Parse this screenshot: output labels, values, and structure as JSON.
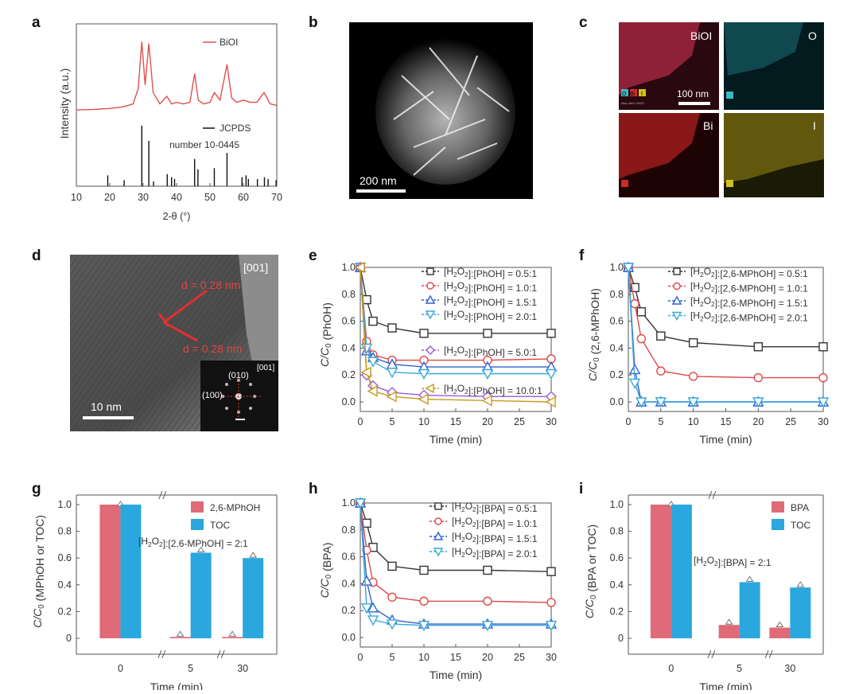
{
  "panel_letters": [
    "a",
    "b",
    "c",
    "d",
    "e",
    "f",
    "g",
    "h",
    "i"
  ],
  "images": {
    "b": {
      "scale": "200 nm"
    },
    "c": {
      "tiles": [
        "BiOI",
        "O",
        "Bi",
        "I"
      ],
      "scale": "100 nm",
      "chips": [
        "O",
        "Bi",
        "I"
      ],
      "tile_colors": [
        "#c22b3a",
        "#3ab8c6",
        "#d12a2a",
        "#cfc11f"
      ],
      "caption": "Map data 14651"
    },
    "d": {
      "zone": "[001]",
      "d1": "d = 0.28 nm",
      "d2": "d = 0.28 nm",
      "scale": "10 nm",
      "inset_zone": "[001]",
      "inset_l1": "(010)",
      "inset_l2": "(100)"
    }
  },
  "chart_data": [
    {
      "id": "a",
      "type": "line",
      "xlabel": "2-θ (°)",
      "ylabel": "Intensity (a.u.)",
      "xlim": [
        10,
        70
      ],
      "xticks": [
        10,
        20,
        30,
        40,
        50,
        60,
        70
      ],
      "series": [
        {
          "name": "BiOI",
          "color": "#e05050",
          "x": [
            10,
            15,
            20,
            24,
            27,
            28.5,
            29.6,
            30.6,
            31.7,
            33,
            35,
            37.1,
            38.5,
            40,
            42,
            44,
            45.4,
            46.5,
            48,
            50,
            51.3,
            53,
            55.1,
            56.5,
            58,
            60,
            62,
            64,
            66.2,
            68,
            70
          ],
          "y": [
            0.02,
            0.025,
            0.04,
            0.06,
            0.1,
            0.3,
            0.92,
            0.35,
            0.9,
            0.25,
            0.1,
            0.2,
            0.1,
            0.12,
            0.1,
            0.12,
            0.5,
            0.15,
            0.1,
            0.12,
            0.25,
            0.15,
            0.62,
            0.18,
            0.12,
            0.15,
            0.12,
            0.12,
            0.25,
            0.1,
            0.08
          ]
        }
      ],
      "reference": {
        "name": "JCPDS number 10-0445",
        "x": [
          19.4,
          24.3,
          29.6,
          31.7,
          33.1,
          37.2,
          38.5,
          39.4,
          45.4,
          46.4,
          51.3,
          55.1,
          59.6,
          60.8,
          61.5,
          64.2,
          66.3,
          67.4,
          69.8
        ],
        "h": [
          0.18,
          0.1,
          1.0,
          0.75,
          0.08,
          0.2,
          0.15,
          0.12,
          0.45,
          0.28,
          0.3,
          0.55,
          0.15,
          0.18,
          0.12,
          0.12,
          0.15,
          0.12,
          0.1
        ]
      }
    },
    {
      "id": "e",
      "type": "line",
      "xlabel": "Time (min)",
      "ylabel": "C/C0 (PhOH)",
      "xlim": [
        0,
        30
      ],
      "ylim": [
        0,
        1.0
      ],
      "xticks": [
        0,
        5,
        10,
        15,
        20,
        25,
        30
      ],
      "yticks": [
        0,
        0.2,
        0.4,
        0.6,
        0.8,
        1.0
      ],
      "x": [
        0,
        1,
        2,
        5,
        10,
        20,
        30
      ],
      "series": [
        {
          "name": "[H2O2]:[PhOH] = 0.5:1",
          "color": "#333333",
          "marker": "square",
          "values": [
            1.0,
            0.76,
            0.6,
            0.55,
            0.51,
            0.51,
            0.51
          ]
        },
        {
          "name": "[H2O2]:[PhOH] = 1.0:1",
          "color": "#e04848",
          "marker": "circle",
          "values": [
            1.0,
            0.45,
            0.35,
            0.31,
            0.31,
            0.31,
            0.32
          ]
        },
        {
          "name": "[H2O2]:[PhOH] = 1.5:1",
          "color": "#3060d0",
          "marker": "triangle-up",
          "values": [
            1.0,
            0.38,
            0.33,
            0.28,
            0.26,
            0.26,
            0.26
          ]
        },
        {
          "name": "[H2O2]:[PhOH] = 2.0:1",
          "color": "#3aa7d8",
          "marker": "triangle-down",
          "values": [
            1.0,
            0.4,
            0.3,
            0.22,
            0.21,
            0.21,
            0.21
          ]
        },
        {
          "name": "[H2O2]:[PhOH] = 5.0:1",
          "color": "#9a5bd6",
          "marker": "diamond",
          "values": [
            1.0,
            0.2,
            0.12,
            0.07,
            0.05,
            0.04,
            0.04
          ]
        },
        {
          "name": "[H2O2]:[PhOH] = 10.0:1",
          "color": "#c79a1a",
          "marker": "triangle-left",
          "values": [
            1.0,
            0.22,
            0.08,
            0.04,
            0.02,
            0.01,
            0.0
          ]
        }
      ]
    },
    {
      "id": "f",
      "type": "line",
      "xlabel": "Time (min)",
      "ylabel": "C/C0 (2,6-MPhOH)",
      "xlim": [
        0,
        30
      ],
      "ylim": [
        0,
        1.0
      ],
      "xticks": [
        0,
        5,
        10,
        15,
        20,
        25,
        30
      ],
      "yticks": [
        0,
        0.2,
        0.4,
        0.6,
        0.8,
        1.0
      ],
      "x": [
        0,
        1,
        2,
        5,
        10,
        20,
        30
      ],
      "series": [
        {
          "name": "[H2O2]:[2,6-MPhOH] = 0.5:1",
          "color": "#333333",
          "marker": "square",
          "values": [
            1.0,
            0.85,
            0.67,
            0.49,
            0.44,
            0.41,
            0.41
          ]
        },
        {
          "name": "[H2O2]:[2,6-MPhOH] = 1.0:1",
          "color": "#e04848",
          "marker": "circle",
          "values": [
            1.0,
            0.73,
            0.47,
            0.23,
            0.19,
            0.18,
            0.18
          ]
        },
        {
          "name": "[H2O2]:[2,6-MPhOH] = 1.5:1",
          "color": "#3060d0",
          "marker": "triangle-up",
          "values": [
            1.0,
            0.24,
            0.0,
            0.0,
            0.0,
            0.0,
            0.0
          ]
        },
        {
          "name": "[H2O2]:[2,6-MPhOH] = 2.0:1",
          "color": "#3aa7d8",
          "marker": "triangle-down",
          "values": [
            1.0,
            0.14,
            0.0,
            0.0,
            0.0,
            0.0,
            0.0
          ]
        }
      ]
    },
    {
      "id": "g",
      "type": "bar",
      "xlabel": "Time (min)",
      "ylabel": "C/C0 (MPhOH or TOC)",
      "categories": [
        "0",
        "5",
        "30"
      ],
      "ylim": [
        0,
        1.0
      ],
      "yticks": [
        0,
        0.2,
        0.4,
        0.6,
        0.8,
        1.0
      ],
      "annotation": "[H2O2]:[2,6-MPhOH] = 2:1",
      "series": [
        {
          "name": "2,6-MPhOH",
          "color": "#e06a78",
          "values": [
            1.0,
            0.01,
            0.01
          ]
        },
        {
          "name": "TOC",
          "color": "#2aa7de",
          "values": [
            1.0,
            0.64,
            0.6
          ]
        }
      ]
    },
    {
      "id": "h",
      "type": "line",
      "xlabel": "Time (min)",
      "ylabel": "C/C0 (BPA)",
      "xlim": [
        0,
        30
      ],
      "ylim": [
        0,
        1.0
      ],
      "xticks": [
        0,
        5,
        10,
        15,
        20,
        25,
        30
      ],
      "yticks": [
        0,
        0.2,
        0.4,
        0.6,
        0.8,
        1.0
      ],
      "x": [
        0,
        1,
        2,
        5,
        10,
        20,
        30
      ],
      "series": [
        {
          "name": "[H2O2]:[BPA] = 0.5:1",
          "color": "#333333",
          "marker": "square",
          "values": [
            1.0,
            0.85,
            0.67,
            0.53,
            0.5,
            0.5,
            0.49
          ]
        },
        {
          "name": "[H2O2]:[BPA] = 1.0:1",
          "color": "#e04848",
          "marker": "circle",
          "values": [
            1.0,
            0.65,
            0.41,
            0.3,
            0.27,
            0.27,
            0.26
          ]
        },
        {
          "name": "[H2O2]:[BPA] = 1.5:1",
          "color": "#3060d0",
          "marker": "triangle-up",
          "values": [
            1.0,
            0.42,
            0.22,
            0.13,
            0.1,
            0.1,
            0.1
          ]
        },
        {
          "name": "[H2O2]:[BPA] = 2.0:1",
          "color": "#3aa7d8",
          "marker": "triangle-down",
          "values": [
            1.0,
            0.22,
            0.13,
            0.1,
            0.09,
            0.09,
            0.09
          ]
        }
      ]
    },
    {
      "id": "i",
      "type": "bar",
      "xlabel": "Time (min)",
      "ylabel": "C/C0 (BPA or TOC)",
      "categories": [
        "0",
        "5",
        "30"
      ],
      "ylim": [
        0,
        1.0
      ],
      "yticks": [
        0,
        0.2,
        0.4,
        0.6,
        0.8,
        1.0
      ],
      "annotation": "[H2O2]:[BPA] = 2:1",
      "series": [
        {
          "name": "BPA",
          "color": "#e06a78",
          "values": [
            1.0,
            0.1,
            0.08
          ]
        },
        {
          "name": "TOC",
          "color": "#2aa7de",
          "values": [
            1.0,
            0.42,
            0.38
          ]
        }
      ]
    }
  ]
}
